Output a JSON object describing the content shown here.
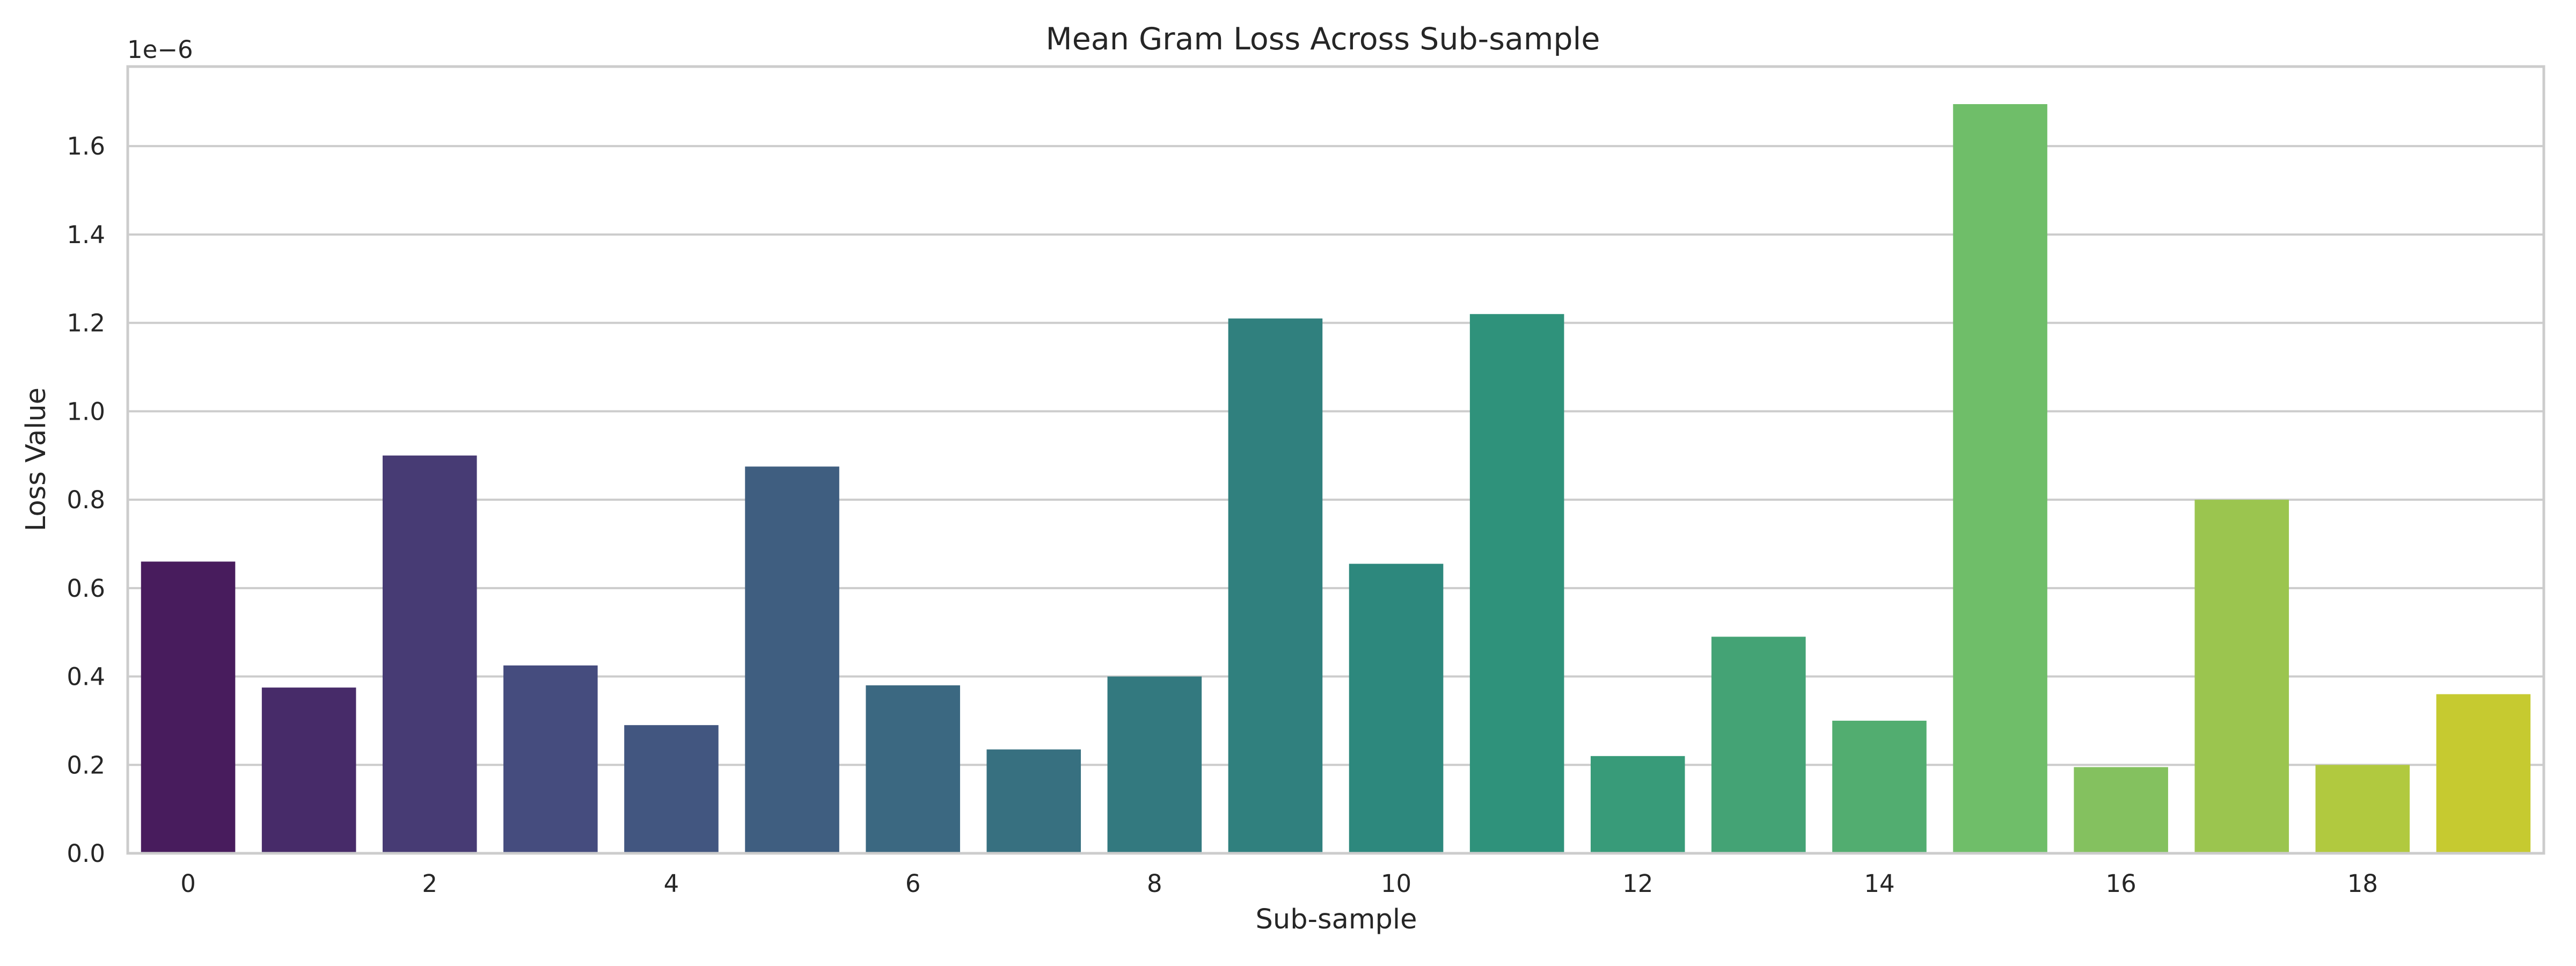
{
  "chart_data": {
    "type": "bar",
    "title": "Mean Gram Loss Across Sub-sample",
    "xlabel": "Sub-sample",
    "ylabel": "Loss Value",
    "offset_label": "1e−6",
    "categories": [
      0,
      1,
      2,
      3,
      4,
      5,
      6,
      7,
      8,
      9,
      10,
      11,
      12,
      13,
      14,
      15,
      16,
      17,
      18,
      19
    ],
    "x_tick_labels": [
      "0",
      "2",
      "4",
      "6",
      "8",
      "10",
      "12",
      "14",
      "16",
      "18"
    ],
    "y_ticks": [
      0.0,
      0.2,
      0.4,
      0.6,
      0.8,
      1.0,
      1.2,
      1.4,
      1.6
    ],
    "y_tick_labels": [
      "0.0",
      "0.2",
      "0.4",
      "0.6",
      "0.8",
      "1.0",
      "1.2",
      "1.4",
      "1.6"
    ],
    "ylim": [
      0,
      1.78
    ],
    "scale_multiplier": 1e-06,
    "values": [
      0.66,
      0.375,
      0.9,
      0.425,
      0.29,
      0.875,
      0.38,
      0.235,
      0.4,
      1.21,
      0.655,
      1.22,
      0.22,
      0.49,
      0.3,
      1.695,
      0.195,
      0.8,
      0.2,
      0.36
    ],
    "colors": [
      "#481C5D",
      "#472B69",
      "#473B74",
      "#454C7E",
      "#425680",
      "#3F5E80",
      "#3B6881",
      "#377080",
      "#33797F",
      "#30807E",
      "#2D887D",
      "#2F927B",
      "#389B79",
      "#44A375",
      "#52AD70",
      "#6FBE69",
      "#84C15F",
      "#9BC54F",
      "#B1C93F",
      "#C6CA30"
    ],
    "grid": true,
    "legend": "none"
  }
}
